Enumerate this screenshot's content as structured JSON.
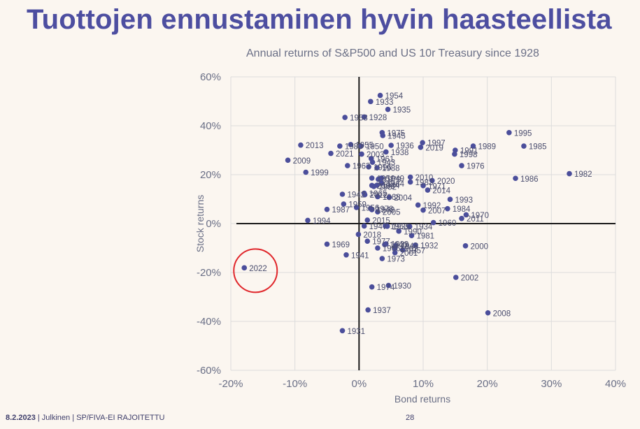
{
  "slide": {
    "title": "Tuottojen ennustaminen hyvin haasteellista",
    "footer_date": "8.2.2023",
    "footer_text": " | Julkinen | SP/FIVA-EI RAJOITETTU",
    "page_number": "28"
  },
  "chart_data": {
    "type": "scatter",
    "title": "Annual returns of S&P500 and US 10r Treasury since 1928",
    "xlabel": "Bond returns",
    "ylabel": "Stock returns",
    "xlim": [
      -0.2,
      0.4
    ],
    "ylim": [
      -0.6,
      0.6
    ],
    "x_ticks": [
      -0.2,
      -0.1,
      0,
      0.1,
      0.2,
      0.3,
      0.4
    ],
    "y_ticks": [
      -0.6,
      -0.4,
      -0.2,
      0,
      0.2,
      0.4,
      0.6
    ],
    "x_tick_labels": [
      "-20%",
      "-10%",
      "0%",
      "10%",
      "20%",
      "30%",
      "40%"
    ],
    "y_tick_labels": [
      "-60%",
      "-40%",
      "-20%",
      "0%",
      "20%",
      "40%",
      "60%"
    ],
    "highlight_year": "2022",
    "colors": {
      "point": "#4b4e9b",
      "highlight": "#e0262b",
      "axis": "#1a1a1a",
      "grid": "#dcdcdc",
      "tick": "#6a6f86"
    },
    "points": [
      {
        "year": "1954",
        "x": 0.033,
        "y": 0.524
      },
      {
        "year": "1933",
        "x": 0.018,
        "y": 0.499
      },
      {
        "year": "1935",
        "x": 0.045,
        "y": 0.467
      },
      {
        "year": "1958",
        "x": -0.022,
        "y": 0.434
      },
      {
        "year": "1928",
        "x": 0.008,
        "y": 0.436
      },
      {
        "year": "1975",
        "x": 0.036,
        "y": 0.372
      },
      {
        "year": "1945",
        "x": 0.037,
        "y": 0.36
      },
      {
        "year": "1995",
        "x": 0.234,
        "y": 0.372
      },
      {
        "year": "1997",
        "x": 0.099,
        "y": 0.331
      },
      {
        "year": "2019",
        "x": 0.096,
        "y": 0.312
      },
      {
        "year": "1989",
        "x": 0.178,
        "y": 0.317
      },
      {
        "year": "1991",
        "x": 0.15,
        "y": 0.3
      },
      {
        "year": "1985",
        "x": 0.257,
        "y": 0.317
      },
      {
        "year": "1998",
        "x": 0.149,
        "y": 0.284
      },
      {
        "year": "2013",
        "x": -0.091,
        "y": 0.321
      },
      {
        "year": "1955",
        "x": -0.013,
        "y": 0.323
      },
      {
        "year": "1980",
        "x": -0.03,
        "y": 0.317
      },
      {
        "year": "1936",
        "x": 0.05,
        "y": 0.32
      },
      {
        "year": "1950",
        "x": 0.003,
        "y": 0.317
      },
      {
        "year": "1938",
        "x": 0.042,
        "y": 0.293
      },
      {
        "year": "2021",
        "x": -0.044,
        "y": 0.287
      },
      {
        "year": "2003",
        "x": 0.004,
        "y": 0.284
      },
      {
        "year": "1961",
        "x": 0.019,
        "y": 0.266
      },
      {
        "year": "1943",
        "x": 0.021,
        "y": 0.251
      },
      {
        "year": "2009",
        "x": -0.111,
        "y": 0.259
      },
      {
        "year": "1976",
        "x": 0.16,
        "y": 0.237
      },
      {
        "year": "1963",
        "x": -0.018,
        "y": 0.237
      },
      {
        "year": "1996",
        "x": 0.015,
        "y": 0.232
      },
      {
        "year": "1988",
        "x": 0.028,
        "y": 0.228
      },
      {
        "year": "1999",
        "x": -0.083,
        "y": 0.21
      },
      {
        "year": "1982",
        "x": 0.328,
        "y": 0.204
      },
      {
        "year": "1986",
        "x": 0.244,
        "y": 0.185
      },
      {
        "year": "2020",
        "x": 0.114,
        "y": 0.176
      },
      {
        "year": "2010",
        "x": 0.08,
        "y": 0.19
      },
      {
        "year": "1949",
        "x": 0.035,
        "y": 0.186
      },
      {
        "year": "1951",
        "x": 0.02,
        "y": 0.186
      },
      {
        "year": "1979",
        "x": 0.03,
        "y": 0.181
      },
      {
        "year": "1983",
        "x": 0.08,
        "y": 0.17
      },
      {
        "year": "2006",
        "x": 0.02,
        "y": 0.156
      },
      {
        "year": "1964",
        "x": 0.035,
        "y": 0.165
      },
      {
        "year": "1944",
        "x": 0.028,
        "y": 0.157
      },
      {
        "year": "1952",
        "x": 0.023,
        "y": 0.152
      },
      {
        "year": "1971",
        "x": 0.1,
        "y": 0.155
      },
      {
        "year": "2014",
        "x": 0.107,
        "y": 0.137
      },
      {
        "year": "1993",
        "x": 0.142,
        "y": 0.099
      },
      {
        "year": "1942",
        "x": -0.026,
        "y": 0.12
      },
      {
        "year": "2012",
        "x": 0.009,
        "y": 0.118
      },
      {
        "year": "1965",
        "x": 0.008,
        "y": 0.124
      },
      {
        "year": "1968",
        "x": 0.029,
        "y": 0.11
      },
      {
        "year": "2004",
        "x": 0.047,
        "y": 0.107
      },
      {
        "year": "1959",
        "x": -0.024,
        "y": 0.08
      },
      {
        "year": "1992",
        "x": 0.092,
        "y": 0.076
      },
      {
        "year": "1984",
        "x": 0.138,
        "y": 0.061
      },
      {
        "year": "2007",
        "x": 0.1,
        "y": 0.055
      },
      {
        "year": "1987",
        "x": -0.05,
        "y": 0.058
      },
      {
        "year": "1956",
        "x": -0.004,
        "y": 0.066
      },
      {
        "year": "1978",
        "x": 0.018,
        "y": 0.062
      },
      {
        "year": "1948",
        "x": 0.02,
        "y": 0.057
      },
      {
        "year": "2005",
        "x": 0.029,
        "y": 0.048
      },
      {
        "year": "1970",
        "x": 0.167,
        "y": 0.036
      },
      {
        "year": "1994",
        "x": -0.08,
        "y": 0.013
      },
      {
        "year": "2015",
        "x": 0.013,
        "y": 0.014
      },
      {
        "year": "2011",
        "x": 0.16,
        "y": 0.021
      },
      {
        "year": "1960",
        "x": 0.116,
        "y": 0.004
      },
      {
        "year": "1939",
        "x": 0.044,
        "y": -0.011
      },
      {
        "year": "1947",
        "x": 0.008,
        "y": -0.01
      },
      {
        "year": "1953",
        "x": 0.041,
        "y": -0.01
      },
      {
        "year": "1934",
        "x": 0.079,
        "y": -0.012
      },
      {
        "year": "1990",
        "x": 0.062,
        "y": -0.031
      },
      {
        "year": "1981",
        "x": 0.082,
        "y": -0.049
      },
      {
        "year": "2018",
        "x": -0.001,
        "y": -0.044
      },
      {
        "year": "1977",
        "x": 0.013,
        "y": -0.072
      },
      {
        "year": "1969",
        "x": -0.05,
        "y": -0.084
      },
      {
        "year": "1940",
        "x": 0.04,
        "y": -0.086
      },
      {
        "year": "1929",
        "x": 0.042,
        "y": -0.083
      },
      {
        "year": "1932",
        "x": 0.088,
        "y": -0.088
      },
      {
        "year": "1966",
        "x": 0.029,
        "y": -0.1
      },
      {
        "year": "1946",
        "x": 0.057,
        "y": -0.09
      },
      {
        "year": "1962",
        "x": 0.056,
        "y": -0.101
      },
      {
        "year": "1957",
        "x": 0.068,
        "y": -0.108
      },
      {
        "year": "2001",
        "x": 0.056,
        "y": -0.119
      },
      {
        "year": "2000",
        "x": 0.166,
        "y": -0.091
      },
      {
        "year": "1941",
        "x": -0.02,
        "y": -0.128
      },
      {
        "year": "1973",
        "x": 0.036,
        "y": -0.143
      },
      {
        "year": "2022",
        "x": -0.179,
        "y": -0.181
      },
      {
        "year": "2002",
        "x": 0.151,
        "y": -0.22
      },
      {
        "year": "1930",
        "x": 0.046,
        "y": -0.253
      },
      {
        "year": "1974",
        "x": 0.02,
        "y": -0.259
      },
      {
        "year": "1937",
        "x": 0.014,
        "y": -0.353
      },
      {
        "year": "2008",
        "x": 0.201,
        "y": -0.365
      },
      {
        "year": "1931",
        "x": -0.026,
        "y": -0.438
      }
    ]
  }
}
